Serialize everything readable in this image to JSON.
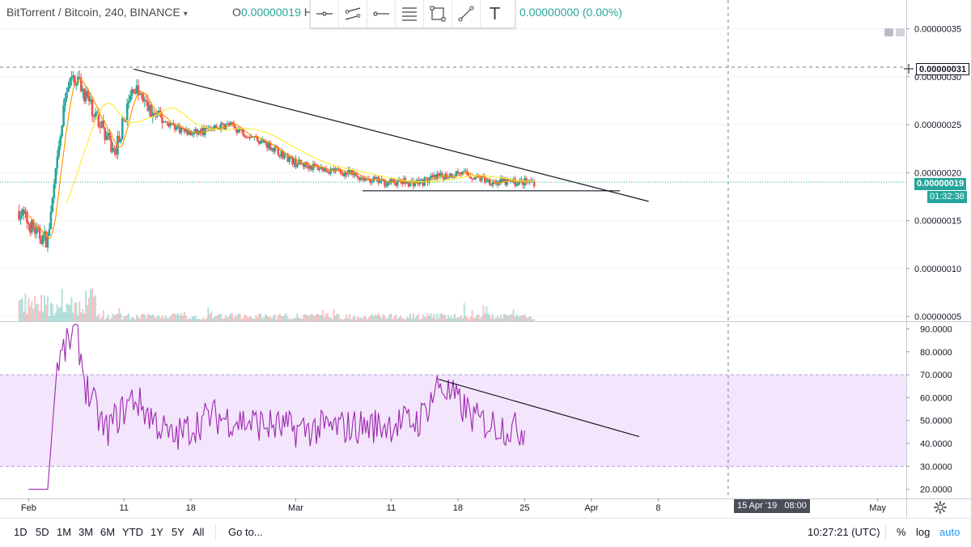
{
  "header": {
    "symbol": "BitTorrent / Bitcoin, 240, BINANCE",
    "ohlc_open_label": "O",
    "ohlc_open_value": "0.00000019",
    "ohlc_more": "H",
    "change": "0.00000000 (0.00%)"
  },
  "toolbar": {
    "tools": [
      "horizontal-line-icon",
      "parallel-channel-icon",
      "ray-icon",
      "fib-levels-icon",
      "rectangle-icon",
      "trend-line-icon",
      "text-icon"
    ],
    "text_tool_glyph": "T"
  },
  "price_axis": {
    "labels": [
      "0.00000035",
      "0.00000030",
      "0.00000025",
      "0.00000020",
      "0.00000015",
      "0.00000010",
      "0.00000005"
    ],
    "crosshair_price": "0.00000031",
    "last_price": "0.00000019",
    "countdown": "01:32:38"
  },
  "rsi_axis": {
    "labels": [
      "90.0000",
      "80.0000",
      "70.0000",
      "60.0000",
      "50.0000",
      "40.0000",
      "30.0000",
      "20.0000"
    ]
  },
  "time_axis": {
    "labels": [
      "Feb",
      "11",
      "18",
      "Mar",
      "11",
      "18",
      "25",
      "Apr",
      "8",
      "22",
      "May"
    ],
    "crosshair_date": "15 Apr '19",
    "crosshair_time": "08:00"
  },
  "bottom_bar": {
    "timeframes": [
      "1D",
      "5D",
      "1M",
      "3M",
      "6M",
      "YTD",
      "1Y",
      "5Y",
      "All"
    ],
    "goto": "Go to...",
    "clock": "10:27:21 (UTC)",
    "percent": "%",
    "log": "log",
    "auto": "auto"
  },
  "colors": {
    "up": "#26a69a",
    "down": "#ef5350",
    "rsi_line": "#9c27b0",
    "rsi_band": "#f3e5fb",
    "ma_fast": "#ff9800",
    "ma_slow": "#ffeb3b",
    "last_price": "#26a69a"
  },
  "chart_data": {
    "type": "candlestick",
    "price_ylim": [
      4.5e-08,
      3.8e-07
    ],
    "rsi_ylim": [
      16,
      93
    ],
    "rsi_bands": [
      30,
      70
    ],
    "x_range": [
      "2019-01-29",
      "2019-05-04"
    ],
    "price_keyframes": [
      {
        "date": "2019-01-31",
        "price": 1.6e-07
      },
      {
        "date": "2019-02-02",
        "price": 1.35e-07
      },
      {
        "date": "2019-02-03",
        "price": 1.3e-07
      },
      {
        "date": "2019-02-04",
        "price": 2.1e-07
      },
      {
        "date": "2019-02-05",
        "price": 2.9e-07
      },
      {
        "date": "2019-02-06",
        "price": 3e-07
      },
      {
        "date": "2019-02-07",
        "price": 2.8e-07
      },
      {
        "date": "2019-02-08",
        "price": 2.6e-07
      },
      {
        "date": "2019-02-10",
        "price": 2.2e-07
      },
      {
        "date": "2019-02-12",
        "price": 2.9e-07
      },
      {
        "date": "2019-02-14",
        "price": 2.6e-07
      },
      {
        "date": "2019-02-18",
        "price": 2.4e-07
      },
      {
        "date": "2019-02-22",
        "price": 2.5e-07
      },
      {
        "date": "2019-02-26",
        "price": 2.3e-07
      },
      {
        "date": "2019-03-01",
        "price": 2.1e-07
      },
      {
        "date": "2019-03-06",
        "price": 2e-07
      },
      {
        "date": "2019-03-10",
        "price": 1.9e-07
      },
      {
        "date": "2019-03-14",
        "price": 1.9e-07
      },
      {
        "date": "2019-03-18",
        "price": 2e-07
      },
      {
        "date": "2019-03-22",
        "price": 1.9e-07
      },
      {
        "date": "2019-03-26",
        "price": 1.9e-07
      }
    ],
    "rsi_keyframes": [
      {
        "date": "2019-02-01",
        "value": 20
      },
      {
        "date": "2019-02-03",
        "value": 20
      },
      {
        "date": "2019-02-04",
        "value": 75
      },
      {
        "date": "2019-02-06",
        "value": 90
      },
      {
        "date": "2019-02-07",
        "value": 65
      },
      {
        "date": "2019-02-09",
        "value": 45
      },
      {
        "date": "2019-02-12",
        "value": 60
      },
      {
        "date": "2019-02-16",
        "value": 42
      },
      {
        "date": "2019-02-20",
        "value": 52
      },
      {
        "date": "2019-03-01",
        "value": 46
      },
      {
        "date": "2019-03-10",
        "value": 48
      },
      {
        "date": "2019-03-14",
        "value": 50
      },
      {
        "date": "2019-03-16",
        "value": 66
      },
      {
        "date": "2019-03-20",
        "value": 50
      },
      {
        "date": "2019-03-24",
        "value": 46
      }
    ],
    "trendlines": [
      {
        "pane": "price",
        "from": {
          "date": "2019-02-12",
          "price": 3.08e-07
        },
        "to": {
          "date": "2019-04-07",
          "price": 1.7e-07
        }
      },
      {
        "pane": "price",
        "from": {
          "date": "2019-03-08",
          "price": 1.81e-07
        },
        "to": {
          "date": "2019-04-04",
          "price": 1.81e-07
        }
      },
      {
        "pane": "rsi",
        "from": {
          "date": "2019-03-16",
          "value": 68
        },
        "to": {
          "date": "2019-04-06",
          "value": 43
        }
      }
    ],
    "last_price": 1.9e-07,
    "crosshair_price": 3.1e-07
  }
}
